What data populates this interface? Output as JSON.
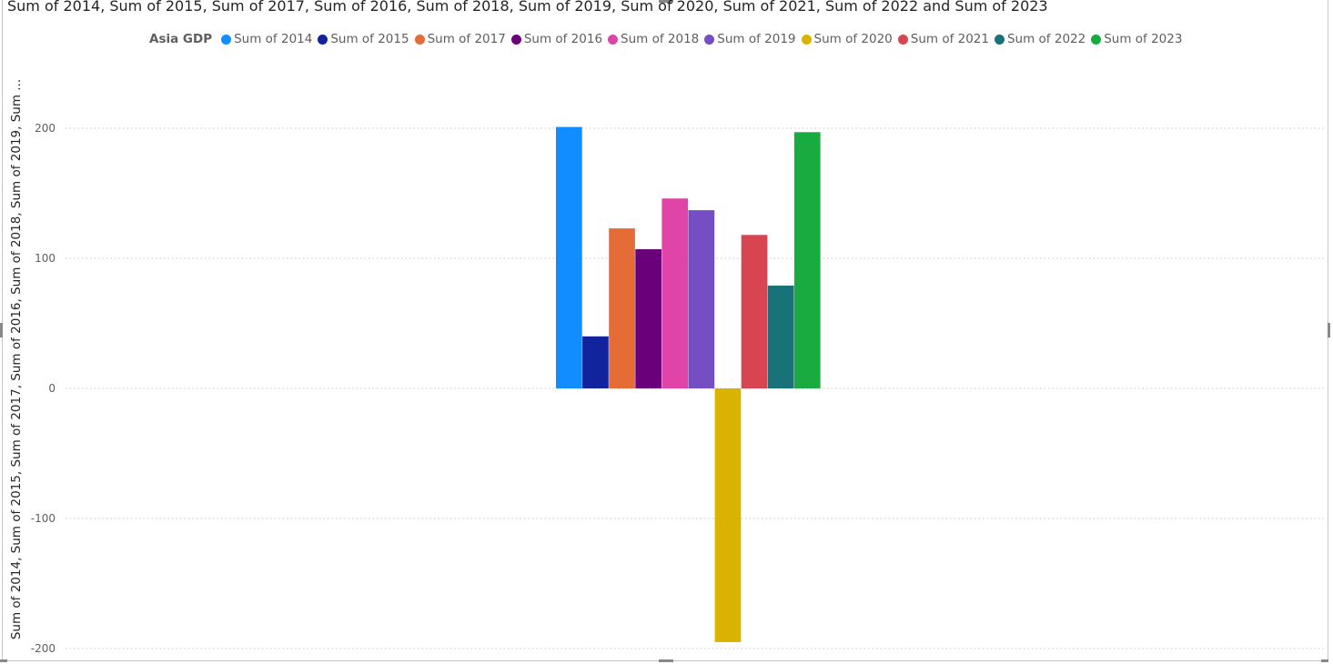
{
  "chart_data": {
    "type": "bar",
    "title": "Sum of 2014, Sum of 2015, Sum of 2017, Sum of 2016, Sum of 2018, Sum of 2019, Sum of 2020, Sum of 2021, Sum of 2022 and Sum of 2023",
    "ylabel": "Sum of 2014, Sum of 2015, Sum of 2017, Sum of 2016, Sum of 2018, Sum of 2019, Sum ...",
    "xlabel": "",
    "legend_title": "Asia GDP",
    "legend_position": "top",
    "grid": true,
    "ylim": [
      -200,
      200
    ],
    "yticks": [
      "200",
      "100",
      "0",
      "-100",
      "-200"
    ],
    "ytick_values": [
      200,
      100,
      0,
      -100,
      -200
    ],
    "series": [
      {
        "name": "Sum of 2014",
        "value": 201,
        "color": "#118DFF"
      },
      {
        "name": "Sum of 2015",
        "value": 40,
        "color": "#12239E"
      },
      {
        "name": "Sum of 2017",
        "value": 123,
        "color": "#E66C37"
      },
      {
        "name": "Sum of 2016",
        "value": 107,
        "color": "#6B007B"
      },
      {
        "name": "Sum of 2018",
        "value": 146,
        "color": "#E044A7"
      },
      {
        "name": "Sum of 2019",
        "value": 137,
        "color": "#744EC2"
      },
      {
        "name": "Sum of 2020",
        "value": -195,
        "color": "#D9B300"
      },
      {
        "name": "Sum of 2021",
        "value": 118,
        "color": "#D64550"
      },
      {
        "name": "Sum of 2022",
        "value": 79,
        "color": "#197278"
      },
      {
        "name": "Sum of 2023",
        "value": 197,
        "color": "#1AAB40"
      }
    ]
  }
}
